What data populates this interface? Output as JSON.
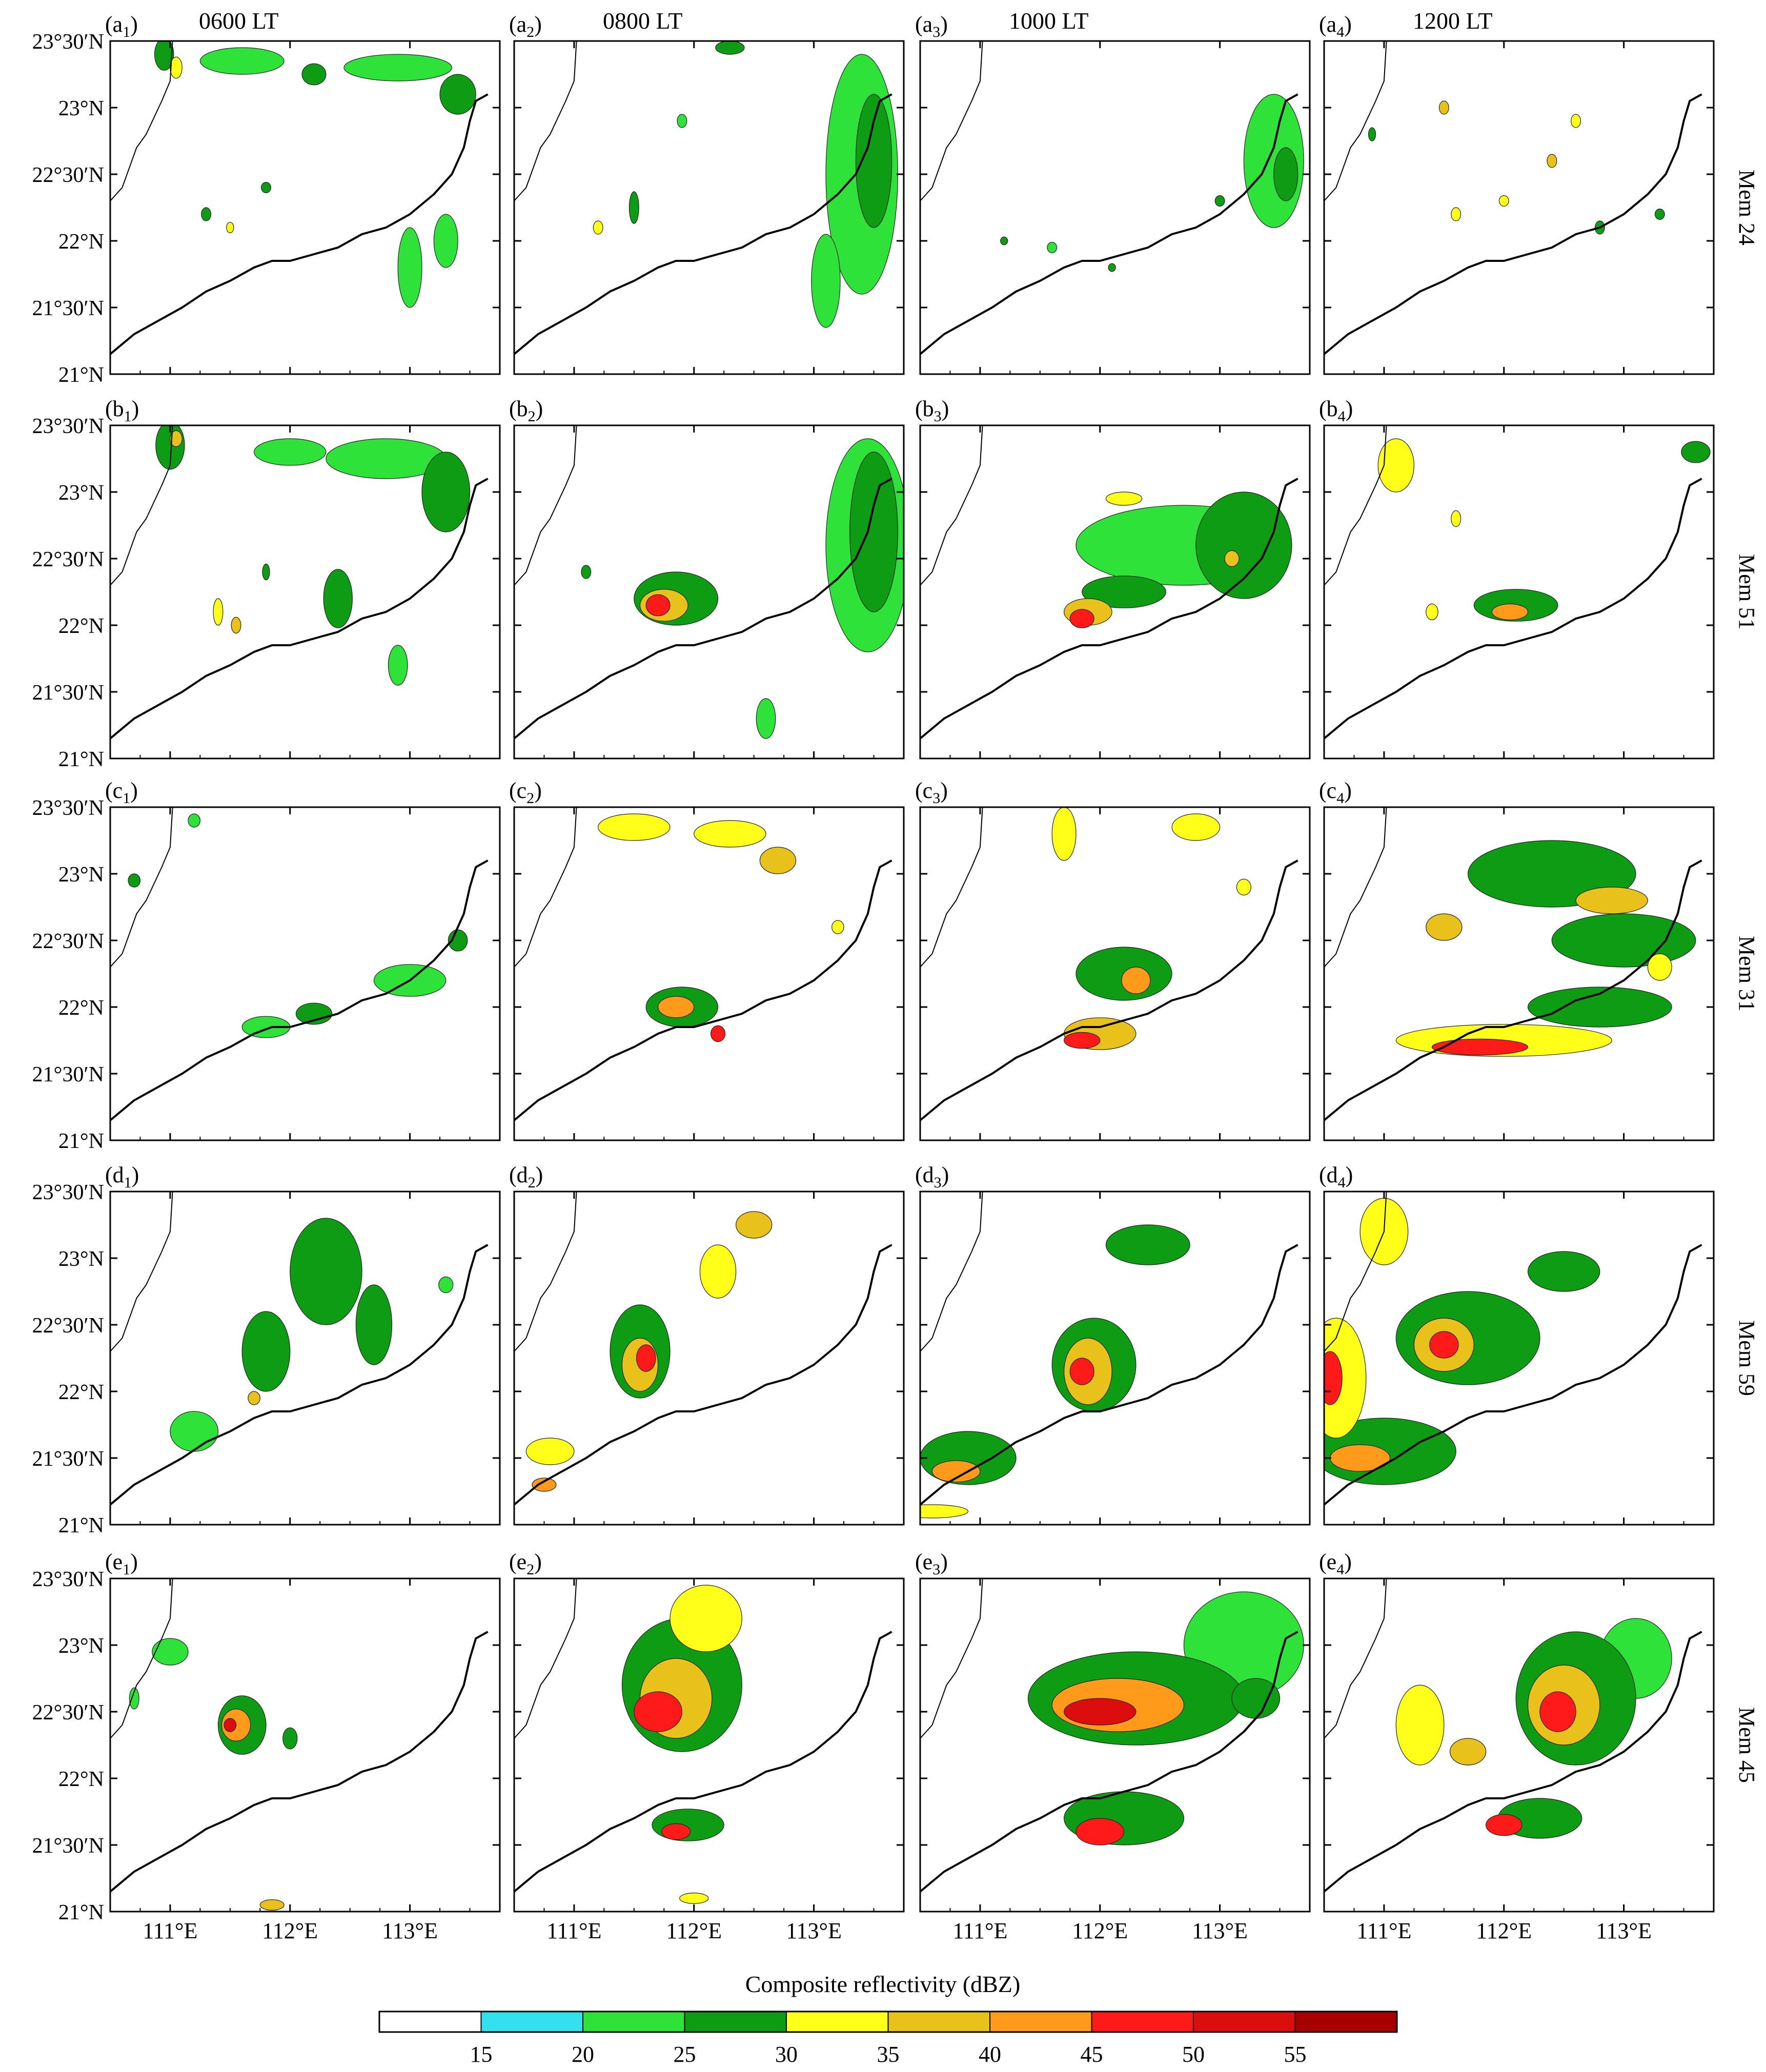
{
  "chart_data": {
    "type": "heatmap",
    "columns": [
      "0600 LT",
      "0800 LT",
      "1000 LT",
      "1200 LT"
    ],
    "rows": [
      {
        "letter": "a",
        "member": "Mem 24"
      },
      {
        "letter": "b",
        "member": "Mem 51"
      },
      {
        "letter": "c",
        "member": "Mem 31"
      },
      {
        "letter": "d",
        "member": "Mem 59"
      },
      {
        "letter": "e",
        "member": "Mem 45"
      }
    ],
    "x_ticks": [
      "111°E",
      "112°E",
      "113°E"
    ],
    "x_tick_values": [
      111,
      112,
      113
    ],
    "y_ticks": [
      "23°30′N",
      "23°N",
      "22°30′N",
      "22°N",
      "21°30′N",
      "21°N"
    ],
    "y_tick_values": [
      23.5,
      23.0,
      22.5,
      22.0,
      21.5,
      21.0
    ],
    "xlim": [
      110.5,
      113.75
    ],
    "ylim": [
      21.0,
      23.5
    ],
    "colorbar": {
      "title": "Composite reflectivity (dBZ)",
      "levels": [
        "15",
        "20",
        "25",
        "30",
        "35",
        "40",
        "45",
        "50",
        "55"
      ],
      "level_values": [
        15,
        20,
        25,
        30,
        35,
        40,
        45,
        50,
        55
      ],
      "colors": [
        "#ffffff",
        "#33e0ee",
        "#2ee23a",
        "#0d9c14",
        "#ffff1a",
        "#e8c11a",
        "#ff9a1a",
        "#ff1a1a",
        "#dc0d0d",
        "#a80000"
      ]
    },
    "coastline": [
      [
        110.5,
        21.15
      ],
      [
        110.7,
        21.3
      ],
      [
        110.9,
        21.4
      ],
      [
        111.1,
        21.5
      ],
      [
        111.3,
        21.62
      ],
      [
        111.5,
        21.7
      ],
      [
        111.7,
        21.8
      ],
      [
        111.85,
        21.85
      ],
      [
        112.0,
        21.85
      ],
      [
        112.2,
        21.9
      ],
      [
        112.4,
        21.95
      ],
      [
        112.6,
        22.05
      ],
      [
        112.8,
        22.1
      ],
      [
        113.0,
        22.2
      ],
      [
        113.2,
        22.35
      ],
      [
        113.35,
        22.5
      ],
      [
        113.45,
        22.7
      ],
      [
        113.5,
        22.9
      ],
      [
        113.55,
        23.05
      ],
      [
        113.65,
        23.1
      ]
    ],
    "province_border": [
      [
        110.5,
        22.3
      ],
      [
        110.6,
        22.4
      ],
      [
        110.72,
        22.7
      ],
      [
        110.8,
        22.8
      ],
      [
        110.93,
        23.05
      ],
      [
        111.0,
        23.2
      ],
      [
        111.02,
        23.5
      ]
    ],
    "cells": [
      [
        [
          [
            110.95,
            23.4,
            0.08,
            0.12,
            25
          ],
          [
            111.05,
            23.3,
            0.05,
            0.08,
            30
          ],
          [
            111.6,
            23.35,
            0.35,
            0.1,
            20
          ],
          [
            112.2,
            23.25,
            0.1,
            0.08,
            25
          ],
          [
            112.9,
            23.3,
            0.45,
            0.1,
            20
          ],
          [
            113.4,
            23.1,
            0.15,
            0.15,
            25
          ],
          [
            111.3,
            22.2,
            0.04,
            0.05,
            25
          ],
          [
            111.5,
            22.1,
            0.03,
            0.04,
            30
          ],
          [
            113.0,
            21.8,
            0.1,
            0.3,
            20
          ],
          [
            113.3,
            22.0,
            0.1,
            0.2,
            20
          ],
          [
            111.8,
            22.4,
            0.04,
            0.04,
            25
          ]
        ],
        [
          [
            113.4,
            22.5,
            0.3,
            0.9,
            20
          ],
          [
            113.5,
            22.6,
            0.15,
            0.5,
            25
          ],
          [
            113.1,
            21.7,
            0.12,
            0.35,
            20
          ],
          [
            112.3,
            23.45,
            0.12,
            0.05,
            25
          ],
          [
            111.5,
            22.25,
            0.04,
            0.12,
            25
          ],
          [
            111.2,
            22.1,
            0.04,
            0.05,
            30
          ],
          [
            111.9,
            22.9,
            0.04,
            0.05,
            20
          ]
        ],
        [
          [
            113.45,
            22.6,
            0.25,
            0.5,
            20
          ],
          [
            113.55,
            22.5,
            0.1,
            0.2,
            25
          ],
          [
            111.2,
            22.0,
            0.03,
            0.03,
            25
          ],
          [
            111.6,
            21.95,
            0.04,
            0.04,
            20
          ],
          [
            112.1,
            21.8,
            0.03,
            0.03,
            25
          ],
          [
            113.0,
            22.3,
            0.04,
            0.04,
            25
          ]
        ],
        [
          [
            111.5,
            23.0,
            0.04,
            0.05,
            35
          ],
          [
            111.6,
            22.2,
            0.04,
            0.05,
            30
          ],
          [
            112.0,
            22.3,
            0.04,
            0.04,
            30
          ],
          [
            112.4,
            22.6,
            0.04,
            0.05,
            35
          ],
          [
            112.8,
            22.1,
            0.04,
            0.05,
            25
          ],
          [
            110.9,
            22.8,
            0.03,
            0.05,
            25
          ],
          [
            113.3,
            22.2,
            0.04,
            0.04,
            25
          ],
          [
            112.6,
            22.9,
            0.04,
            0.05,
            30
          ]
        ]
      ],
      [
        [
          [
            111.0,
            23.35,
            0.12,
            0.18,
            25
          ],
          [
            111.05,
            23.4,
            0.05,
            0.06,
            35
          ],
          [
            112.0,
            23.3,
            0.3,
            0.1,
            20
          ],
          [
            112.8,
            23.25,
            0.5,
            0.15,
            20
          ],
          [
            113.3,
            23.0,
            0.2,
            0.3,
            25
          ],
          [
            111.4,
            22.1,
            0.04,
            0.1,
            30
          ],
          [
            111.55,
            22.0,
            0.04,
            0.06,
            35
          ],
          [
            112.4,
            22.2,
            0.12,
            0.22,
            25
          ],
          [
            112.9,
            21.7,
            0.08,
            0.15,
            20
          ],
          [
            111.8,
            22.4,
            0.03,
            0.06,
            25
          ]
        ],
        [
          [
            113.45,
            22.6,
            0.35,
            0.8,
            20
          ],
          [
            113.5,
            22.7,
            0.2,
            0.6,
            25
          ],
          [
            111.85,
            22.2,
            0.35,
            0.2,
            25
          ],
          [
            111.75,
            22.15,
            0.2,
            0.12,
            35
          ],
          [
            111.7,
            22.15,
            0.1,
            0.08,
            45
          ],
          [
            112.6,
            21.3,
            0.08,
            0.15,
            20
          ],
          [
            111.1,
            22.4,
            0.04,
            0.05,
            25
          ]
        ],
        [
          [
            112.7,
            22.6,
            0.9,
            0.3,
            20
          ],
          [
            113.2,
            22.6,
            0.4,
            0.4,
            25
          ],
          [
            112.2,
            22.25,
            0.35,
            0.12,
            25
          ],
          [
            111.9,
            22.1,
            0.2,
            0.1,
            35
          ],
          [
            111.85,
            22.05,
            0.1,
            0.07,
            45
          ],
          [
            112.2,
            22.95,
            0.15,
            0.05,
            30
          ],
          [
            113.1,
            22.5,
            0.06,
            0.06,
            35
          ]
        ],
        [
          [
            112.1,
            22.15,
            0.35,
            0.12,
            25
          ],
          [
            112.05,
            22.1,
            0.15,
            0.06,
            40
          ],
          [
            111.1,
            23.2,
            0.15,
            0.2,
            30
          ],
          [
            113.6,
            23.3,
            0.12,
            0.08,
            25
          ],
          [
            111.6,
            22.8,
            0.04,
            0.06,
            30
          ],
          [
            111.4,
            22.1,
            0.05,
            0.06,
            30
          ]
        ]
      ],
      [
        [
          [
            111.8,
            21.85,
            0.2,
            0.08,
            20
          ],
          [
            112.2,
            21.95,
            0.15,
            0.08,
            25
          ],
          [
            113.0,
            22.2,
            0.3,
            0.12,
            20
          ],
          [
            113.4,
            22.5,
            0.08,
            0.08,
            25
          ],
          [
            110.7,
            22.95,
            0.05,
            0.05,
            25
          ],
          [
            111.2,
            23.4,
            0.05,
            0.05,
            20
          ]
        ],
        [
          [
            111.9,
            22.0,
            0.3,
            0.15,
            25
          ],
          [
            111.85,
            22.0,
            0.15,
            0.08,
            40
          ],
          [
            112.2,
            21.8,
            0.06,
            0.06,
            45
          ],
          [
            111.5,
            23.35,
            0.3,
            0.1,
            30
          ],
          [
            112.3,
            23.3,
            0.3,
            0.1,
            30
          ],
          [
            112.7,
            23.1,
            0.15,
            0.1,
            35
          ],
          [
            113.2,
            22.6,
            0.05,
            0.05,
            30
          ]
        ],
        [
          [
            112.2,
            22.25,
            0.4,
            0.2,
            25
          ],
          [
            112.0,
            21.8,
            0.3,
            0.12,
            35
          ],
          [
            111.85,
            21.75,
            0.15,
            0.06,
            45
          ],
          [
            112.3,
            22.2,
            0.12,
            0.1,
            40
          ],
          [
            111.7,
            23.3,
            0.1,
            0.2,
            30
          ],
          [
            112.8,
            23.35,
            0.2,
            0.1,
            30
          ],
          [
            113.2,
            22.9,
            0.06,
            0.06,
            30
          ]
        ],
        [
          [
            112.0,
            21.75,
            0.9,
            0.12,
            30
          ],
          [
            111.8,
            21.7,
            0.4,
            0.06,
            45
          ],
          [
            112.8,
            22.0,
            0.6,
            0.15,
            25
          ],
          [
            113.0,
            22.5,
            0.6,
            0.2,
            25
          ],
          [
            112.4,
            23.0,
            0.7,
            0.25,
            25
          ],
          [
            112.9,
            22.8,
            0.3,
            0.1,
            35
          ],
          [
            111.5,
            22.6,
            0.15,
            0.1,
            35
          ],
          [
            113.3,
            22.3,
            0.1,
            0.1,
            30
          ]
        ]
      ],
      [
        [
          [
            112.3,
            22.9,
            0.3,
            0.4,
            25
          ],
          [
            111.8,
            22.3,
            0.2,
            0.3,
            25
          ],
          [
            111.7,
            21.95,
            0.05,
            0.05,
            35
          ],
          [
            111.2,
            21.7,
            0.2,
            0.15,
            20
          ],
          [
            112.7,
            22.5,
            0.15,
            0.3,
            25
          ],
          [
            113.3,
            22.8,
            0.06,
            0.06,
            20
          ]
        ],
        [
          [
            111.55,
            22.3,
            0.25,
            0.35,
            25
          ],
          [
            111.55,
            22.2,
            0.15,
            0.2,
            35
          ],
          [
            111.6,
            22.25,
            0.08,
            0.1,
            45
          ],
          [
            110.8,
            21.55,
            0.2,
            0.1,
            30
          ],
          [
            110.75,
            21.3,
            0.1,
            0.05,
            40
          ],
          [
            112.2,
            22.9,
            0.15,
            0.2,
            30
          ],
          [
            112.5,
            23.25,
            0.15,
            0.1,
            35
          ]
        ],
        [
          [
            111.95,
            22.2,
            0.35,
            0.35,
            25
          ],
          [
            111.9,
            22.15,
            0.2,
            0.25,
            35
          ],
          [
            111.85,
            22.15,
            0.1,
            0.1,
            45
          ],
          [
            110.9,
            21.5,
            0.4,
            0.2,
            25
          ],
          [
            110.8,
            21.4,
            0.2,
            0.08,
            40
          ],
          [
            112.4,
            23.1,
            0.35,
            0.15,
            25
          ],
          [
            110.6,
            21.1,
            0.3,
            0.05,
            30
          ]
        ],
        [
          [
            111.7,
            22.4,
            0.6,
            0.35,
            25
          ],
          [
            111.5,
            22.35,
            0.25,
            0.2,
            35
          ],
          [
            111.5,
            22.35,
            0.12,
            0.1,
            45
          ],
          [
            110.6,
            22.1,
            0.25,
            0.45,
            30
          ],
          [
            110.55,
            22.1,
            0.1,
            0.2,
            45
          ],
          [
            111.0,
            21.55,
            0.6,
            0.25,
            25
          ],
          [
            110.8,
            21.5,
            0.25,
            0.1,
            40
          ],
          [
            111.0,
            23.2,
            0.2,
            0.25,
            30
          ],
          [
            112.5,
            22.9,
            0.3,
            0.15,
            25
          ]
        ]
      ],
      [
        [
          [
            111.6,
            22.4,
            0.2,
            0.22,
            25
          ],
          [
            111.55,
            22.4,
            0.12,
            0.12,
            40
          ],
          [
            111.5,
            22.4,
            0.05,
            0.05,
            50
          ],
          [
            111.0,
            22.95,
            0.15,
            0.1,
            20
          ],
          [
            111.85,
            21.05,
            0.1,
            0.04,
            35
          ],
          [
            112.0,
            22.3,
            0.06,
            0.08,
            25
          ],
          [
            110.7,
            22.6,
            0.04,
            0.08,
            20
          ]
        ],
        [
          [
            111.9,
            22.7,
            0.5,
            0.5,
            25
          ],
          [
            111.85,
            22.6,
            0.3,
            0.3,
            35
          ],
          [
            111.7,
            22.5,
            0.2,
            0.15,
            45
          ],
          [
            111.95,
            21.65,
            0.3,
            0.12,
            25
          ],
          [
            111.85,
            21.6,
            0.12,
            0.06,
            45
          ],
          [
            112.1,
            23.2,
            0.3,
            0.25,
            30
          ],
          [
            112.0,
            21.1,
            0.12,
            0.04,
            30
          ]
        ],
        [
          [
            112.3,
            22.6,
            0.9,
            0.35,
            25
          ],
          [
            112.15,
            22.55,
            0.55,
            0.2,
            40
          ],
          [
            112.0,
            22.5,
            0.3,
            0.1,
            50
          ],
          [
            112.2,
            21.7,
            0.5,
            0.2,
            25
          ],
          [
            112.0,
            21.6,
            0.2,
            0.1,
            45
          ],
          [
            113.2,
            23.0,
            0.5,
            0.4,
            20
          ],
          [
            113.3,
            22.6,
            0.2,
            0.15,
            25
          ]
        ],
        [
          [
            112.6,
            22.6,
            0.5,
            0.5,
            25
          ],
          [
            112.5,
            22.55,
            0.3,
            0.3,
            35
          ],
          [
            112.45,
            22.5,
            0.15,
            0.15,
            45
          ],
          [
            112.3,
            21.7,
            0.35,
            0.15,
            25
          ],
          [
            112.0,
            21.65,
            0.15,
            0.08,
            45
          ],
          [
            111.3,
            22.4,
            0.2,
            0.3,
            30
          ],
          [
            111.7,
            22.2,
            0.15,
            0.1,
            35
          ],
          [
            113.1,
            22.9,
            0.3,
            0.3,
            20
          ]
        ]
      ]
    ]
  }
}
